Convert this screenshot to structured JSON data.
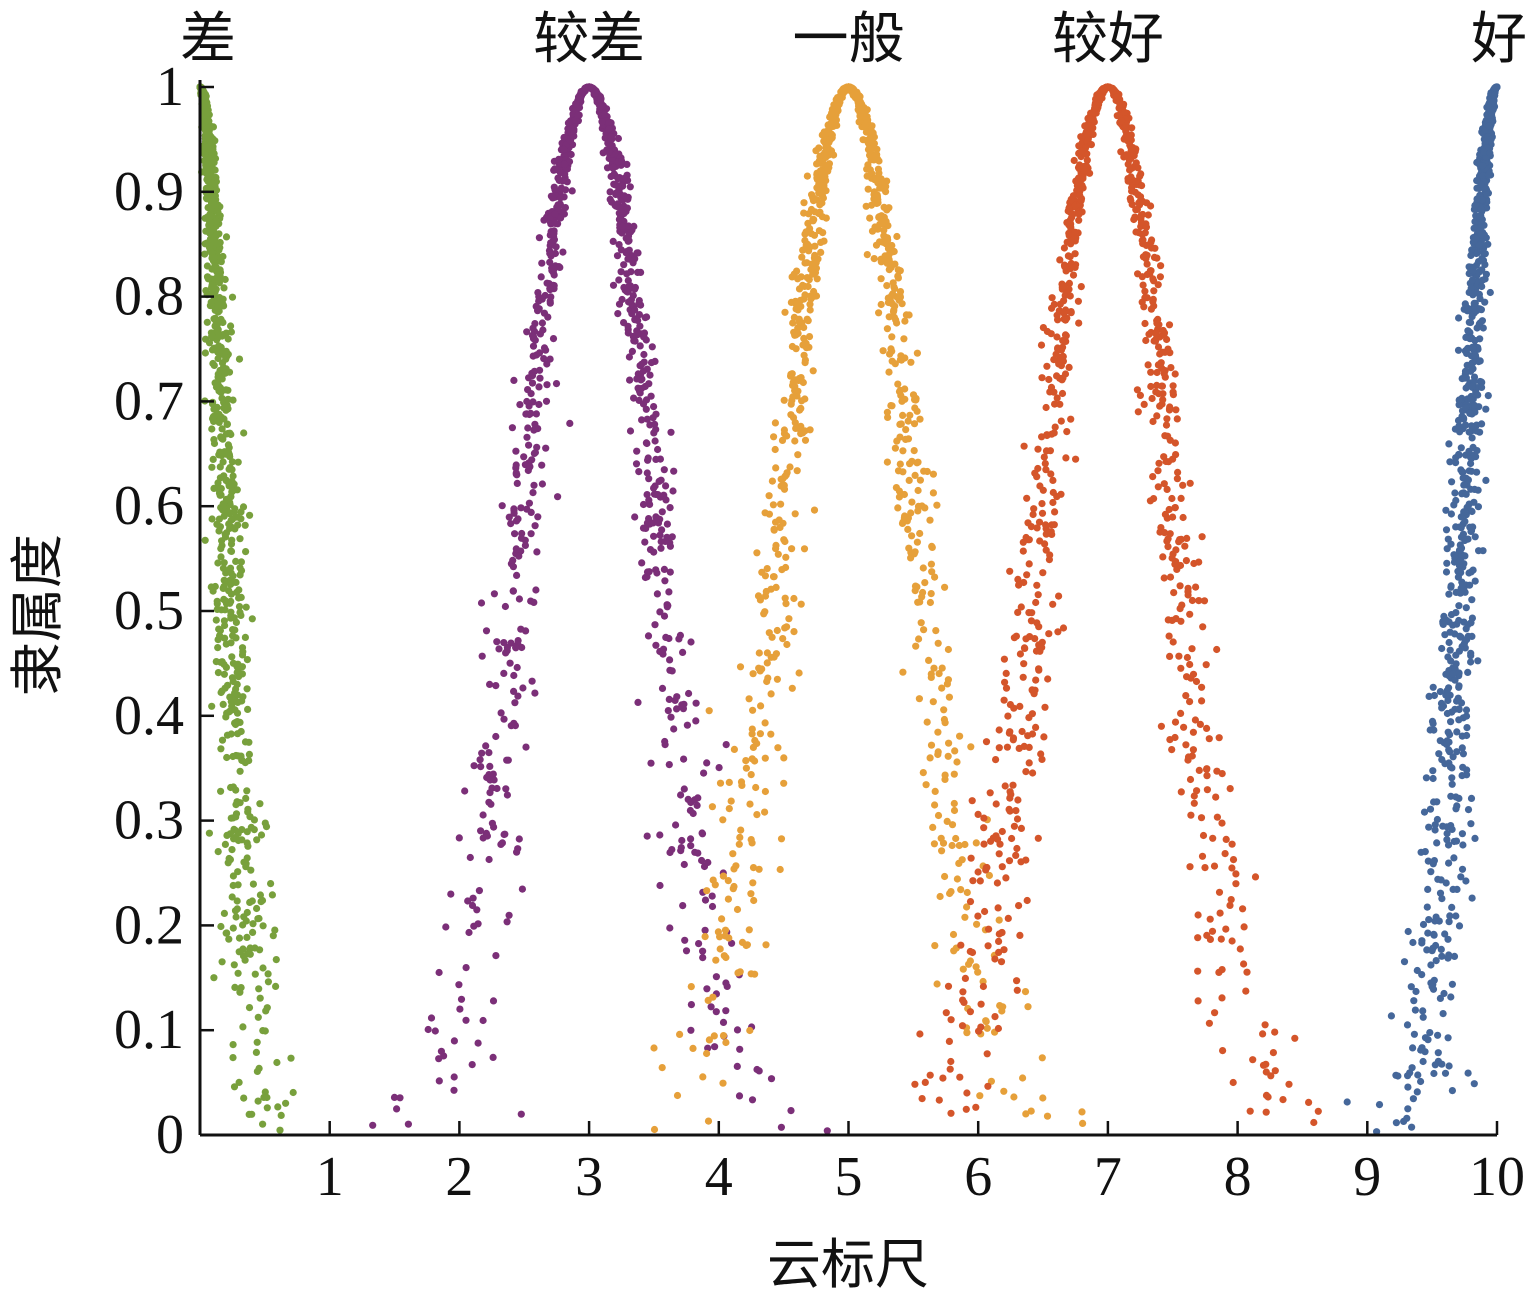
{
  "chart_data": {
    "type": "scatter",
    "title": "",
    "xlabel": "云标尺",
    "ylabel": "隶属度",
    "xlim": [
      0,
      10
    ],
    "ylim": [
      0,
      1
    ],
    "xticks": [
      1,
      2,
      3,
      4,
      5,
      6,
      7,
      8,
      9,
      10
    ],
    "yticks": [
      0,
      0.1,
      0.2,
      0.3,
      0.4,
      0.5,
      0.6,
      0.7,
      0.8,
      0.9,
      1
    ],
    "xtick_labels": [
      "1",
      "2",
      "3",
      "4",
      "5",
      "6",
      "7",
      "8",
      "9",
      "10"
    ],
    "ytick_labels": [
      "0",
      "0.1",
      "0.2",
      "0.3",
      "0.4",
      "0.5",
      "0.6",
      "0.7",
      "0.8",
      "0.9",
      "1"
    ],
    "grid": false,
    "point_count_per_cloud": 1000,
    "series": [
      {
        "name": "差",
        "color": "#78a03c",
        "Ex": 0,
        "En": 0.2,
        "He": 0.06,
        "side": "right"
      },
      {
        "name": "较差",
        "color": "#7b2f78",
        "Ex": 3,
        "En": 0.5,
        "He": 0.08,
        "side": "both"
      },
      {
        "name": "一般",
        "color": "#e6a03a",
        "Ex": 5,
        "En": 0.5,
        "He": 0.08,
        "side": "both"
      },
      {
        "name": "较好",
        "color": "#d4552a",
        "Ex": 7,
        "En": 0.5,
        "He": 0.08,
        "side": "both"
      },
      {
        "name": "好",
        "color": "#45679a",
        "Ex": 10,
        "En": 0.25,
        "He": 0.06,
        "side": "left"
      }
    ]
  }
}
